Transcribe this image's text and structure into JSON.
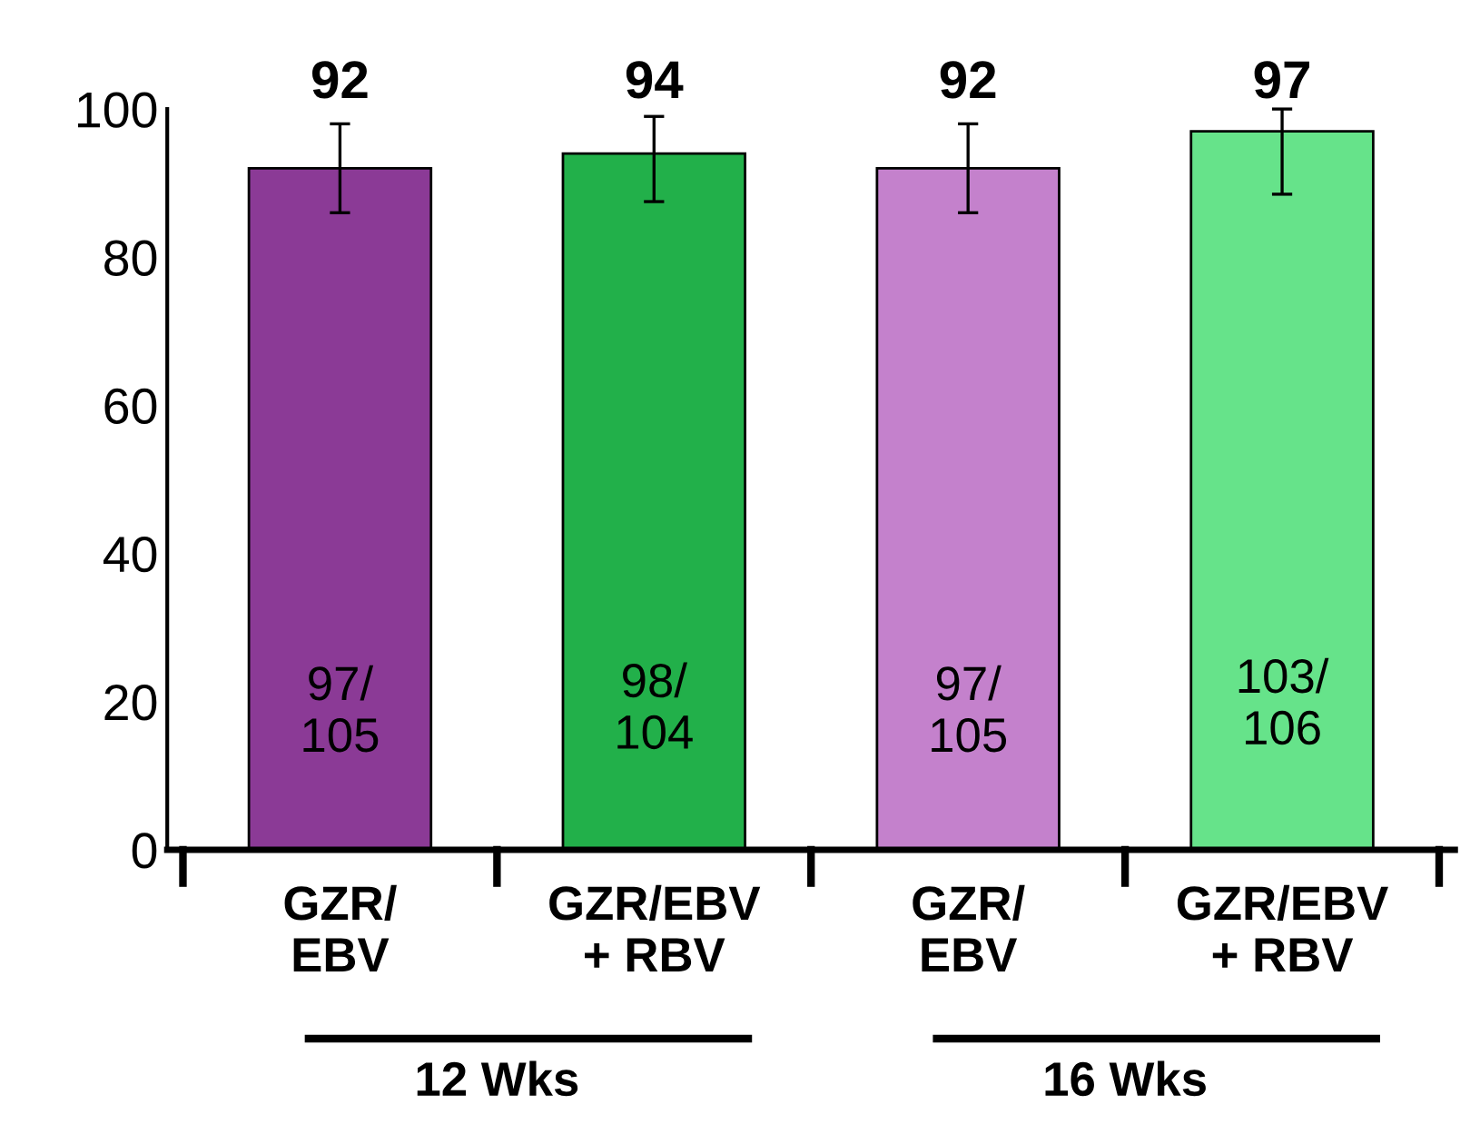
{
  "chart_data": {
    "type": "bar",
    "categories": [
      "GZR/\nEBV",
      "GZR/EBV\n+ RBV",
      "GZR/\nEBV",
      "GZR/EBV\n+ RBV"
    ],
    "values": [
      92,
      94,
      92,
      97
    ],
    "colors": [
      "#8b3a96",
      "#22b04a",
      "#c481cc",
      "#66e38a"
    ],
    "errors": [
      [
        86,
        98
      ],
      [
        87.5,
        99
      ],
      [
        86,
        98
      ],
      [
        88.5,
        100
      ]
    ],
    "data_labels": true,
    "ylim": [
      0,
      100
    ],
    "yticks": [
      0,
      20,
      40,
      60,
      80,
      100
    ],
    "grid": false,
    "legend": false,
    "annotations": [
      "97/\n105",
      "98/\n104",
      "97/\n105",
      "103/\n106",
      "12 Wks",
      "16 Wks"
    ]
  }
}
